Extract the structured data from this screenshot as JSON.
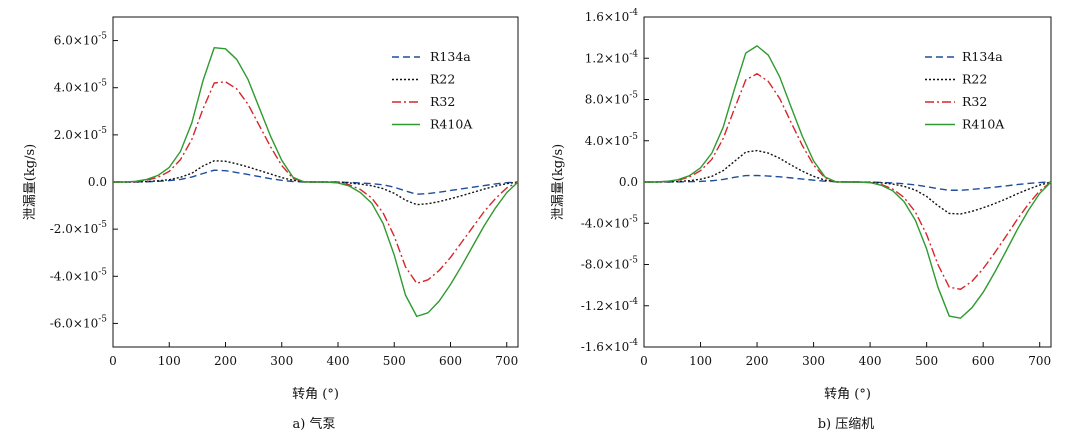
{
  "chart_data": [
    {
      "type": "line",
      "caption": "a) 气泵",
      "xlabel": "转角 (°)",
      "ylabel": "泄漏量(kg/s)",
      "xlim": [
        0,
        720
      ],
      "ylim": [
        -7e-05,
        7e-05
      ],
      "xticks": [
        0,
        100,
        200,
        300,
        400,
        500,
        600,
        700
      ],
      "xtick_labels": [
        "0",
        "100",
        "200",
        "300",
        "400",
        "500",
        "600",
        "700"
      ],
      "yticks": [
        6e-05,
        4e-05,
        2e-05,
        0,
        -2e-05,
        -4e-05,
        -6e-05
      ],
      "ytick_labels": [
        {
          "m": "6.0×10",
          "e": "-5"
        },
        {
          "m": "4.0×10",
          "e": "-5"
        },
        {
          "m": "2.0×10",
          "e": "-5"
        },
        {
          "m": "0.0",
          "e": ""
        },
        {
          "m": "-2.0×10",
          "e": "-5"
        },
        {
          "m": "-4.0×10",
          "e": "-5"
        },
        {
          "m": "-6.0×10",
          "e": "-5"
        }
      ],
      "x": [
        0,
        20,
        40,
        60,
        80,
        100,
        120,
        140,
        160,
        180,
        200,
        220,
        240,
        260,
        280,
        300,
        320,
        340,
        360,
        380,
        400,
        420,
        440,
        460,
        480,
        500,
        520,
        540,
        560,
        580,
        600,
        620,
        640,
        660,
        680,
        700,
        720
      ],
      "series": [
        {
          "name": "R134a",
          "color": "#1f4e9c",
          "dash": "7,4",
          "values": [
            0,
            0,
            0,
            1e-07,
            3e-07,
            6e-07,
            1.1e-06,
            2.1e-06,
            3.6e-06,
            5e-06,
            4.8e-06,
            4e-06,
            3.2e-06,
            2.3e-06,
            1.4e-06,
            7e-07,
            2e-07,
            0,
            0,
            0,
            0,
            -2e-07,
            -4e-07,
            -7e-07,
            -1.2e-06,
            -2.2e-06,
            -3.8e-06,
            -5.2e-06,
            -4.9e-06,
            -4.3e-06,
            -3.6e-06,
            -2.9e-06,
            -2.2e-06,
            -1.5e-06,
            -8e-07,
            -3e-07,
            0
          ]
        },
        {
          "name": "R22",
          "color": "#111111",
          "dash": "2,2",
          "values": [
            0,
            0,
            0,
            2e-07,
            5e-07,
            1e-06,
            2e-06,
            3.7e-06,
            6.8e-06,
            9e-06,
            8.8e-06,
            7.7e-06,
            6.4e-06,
            4.9e-06,
            3.4e-06,
            1.9e-06,
            7e-07,
            1e-07,
            0,
            0,
            -1e-07,
            -4e-07,
            -9e-07,
            -1.6e-06,
            -2.8e-06,
            -4.8e-06,
            -7.7e-06,
            -9.6e-06,
            -9.2e-06,
            -8.3e-06,
            -7.1e-06,
            -5.8e-06,
            -4.4e-06,
            -3e-06,
            -1.7e-06,
            -7e-07,
            0
          ]
        },
        {
          "name": "R32",
          "color": "#d7262b",
          "dash": "9,3,2,3",
          "values": [
            0,
            0,
            2e-07,
            8e-07,
            2e-06,
            4.5e-06,
            9.5e-06,
            1.8e-05,
            3.1e-05,
            4.2e-05,
            4.25e-05,
            3.95e-05,
            3.3e-05,
            2.4e-05,
            1.5e-05,
            7e-06,
            1.5e-06,
            0,
            0,
            0,
            -3e-07,
            -1.2e-06,
            -3.2e-06,
            -6.8e-06,
            -1.3e-05,
            -2.3e-05,
            -3.6e-05,
            -4.3e-05,
            -4.15e-05,
            -3.75e-05,
            -3.2e-05,
            -2.55e-05,
            -1.9e-05,
            -1.25e-05,
            -7e-06,
            -2.5e-06,
            0
          ]
        },
        {
          "name": "R410A",
          "color": "#2f9a2f",
          "dash": "",
          "values": [
            0,
            0,
            3e-07,
            1.1e-06,
            2.8e-06,
            6.2e-06,
            1.3e-05,
            2.5e-05,
            4.3e-05,
            5.7e-05,
            5.65e-05,
            5.2e-05,
            4.35e-05,
            3.15e-05,
            1.95e-05,
            9.2e-06,
            2e-06,
            0,
            0,
            0,
            -4e-07,
            -1.7e-06,
            -4.5e-06,
            -9e-06,
            -1.75e-05,
            -3.1e-05,
            -4.8e-05,
            -5.7e-05,
            -5.55e-05,
            -5.05e-05,
            -4.35e-05,
            -3.55e-05,
            -2.7e-05,
            -1.85e-05,
            -1.1e-05,
            -4.5e-06,
            0
          ]
        }
      ]
    },
    {
      "type": "line",
      "caption": "b) 压缩机",
      "xlabel": "转角 (°)",
      "ylabel": "泄漏量(kg/s)",
      "xlim": [
        0,
        720
      ],
      "ylim": [
        -0.00016,
        0.00016
      ],
      "xticks": [
        0,
        100,
        200,
        300,
        400,
        500,
        600,
        700
      ],
      "xtick_labels": [
        "0",
        "100",
        "200",
        "300",
        "400",
        "500",
        "600",
        "700"
      ],
      "yticks": [
        0.00016,
        0.00012,
        8e-05,
        4e-05,
        0,
        -4e-05,
        -8e-05,
        -0.00012,
        -0.00016
      ],
      "ytick_labels": [
        {
          "m": "1.6×10",
          "e": "-4"
        },
        {
          "m": "1.2×10",
          "e": "-4"
        },
        {
          "m": "8.0×10",
          "e": "-5"
        },
        {
          "m": "4.0×10",
          "e": "-5"
        },
        {
          "m": "0.0",
          "e": ""
        },
        {
          "m": "-4.0×10",
          "e": "-5"
        },
        {
          "m": "-8.0×10",
          "e": "-5"
        },
        {
          "m": "-1.2×10",
          "e": "-4"
        },
        {
          "m": "-1.6×10",
          "e": "-4"
        }
      ],
      "x": [
        0,
        20,
        40,
        60,
        80,
        100,
        120,
        140,
        160,
        180,
        200,
        220,
        240,
        260,
        280,
        300,
        320,
        340,
        360,
        380,
        400,
        420,
        440,
        460,
        480,
        500,
        520,
        540,
        560,
        580,
        600,
        620,
        640,
        660,
        680,
        700,
        720
      ],
      "series": [
        {
          "name": "R134a",
          "color": "#1f4e9c",
          "dash": "7,4",
          "values": [
            0,
            0,
            0,
            1e-07,
            3e-07,
            6e-07,
            1.2e-06,
            2.5e-06,
            4.5e-06,
            6.2e-06,
            6.3e-06,
            5.8e-06,
            5e-06,
            4e-06,
            2.9e-06,
            1.8e-06,
            8e-07,
            2e-07,
            0,
            0,
            -1e-07,
            -4e-07,
            -9e-07,
            -1.7e-06,
            -2.8e-06,
            -4.5e-06,
            -6.5e-06,
            -8e-06,
            -8e-06,
            -7.2e-06,
            -6.2e-06,
            -5e-06,
            -3.8e-06,
            -2.5e-06,
            -1.4e-06,
            -5e-07,
            0
          ]
        },
        {
          "name": "R22",
          "color": "#111111",
          "dash": "2,2",
          "values": [
            0,
            0,
            1e-07,
            5e-07,
            1.2e-06,
            2.7e-06,
            5.5e-06,
            1.1e-05,
            2e-05,
            2.9e-05,
            3.05e-05,
            2.8e-05,
            2.3e-05,
            1.65e-05,
            1.05e-05,
            5.5e-06,
            1.8e-06,
            2e-07,
            0,
            0,
            -2e-07,
            -8e-07,
            -2e-06,
            -4.2e-06,
            -7.8e-06,
            -1.4e-05,
            -2.3e-05,
            -3.05e-05,
            -3.1e-05,
            -2.85e-05,
            -2.5e-05,
            -2.1e-05,
            -1.65e-05,
            -1.15e-05,
            -7e-06,
            -3e-06,
            0
          ]
        },
        {
          "name": "R32",
          "color": "#d7262b",
          "dash": "9,3,2,3",
          "values": [
            0,
            0,
            5e-07,
            1.8e-06,
            4.8e-06,
            1.1e-05,
            2.2e-05,
            4.2e-05,
            7.1e-05,
            9.9e-05,
            0.000105,
            9.75e-05,
            8.1e-05,
            5.8e-05,
            3.55e-05,
            1.65e-05,
            4e-06,
            0,
            0,
            0,
            -5e-07,
            -2.5e-06,
            -6.8e-06,
            -1.5e-05,
            -2.9e-05,
            -5.1e-05,
            -8e-05,
            -0.000102,
            -0.000104,
            -9.65e-05,
            -8.4e-05,
            -6.9e-05,
            -5.3e-05,
            -3.65e-05,
            -2.15e-05,
            -8.5e-06,
            0
          ]
        },
        {
          "name": "R410A",
          "color": "#2f9a2f",
          "dash": "",
          "values": [
            0,
            0,
            6e-07,
            2.3e-06,
            6e-06,
            1.38e-05,
            2.8e-05,
            5.3e-05,
            9e-05,
            0.000125,
            0.000132,
            0.000123,
            0.000102,
            7.3e-05,
            4.45e-05,
            2.05e-05,
            5e-06,
            0,
            0,
            0,
            -6e-07,
            -3.2e-06,
            -8.5e-06,
            -1.9e-05,
            -3.7e-05,
            -6.5e-05,
            -0.000102,
            -0.00013,
            -0.000132,
            -0.000122,
            -0.000107,
            -8.8e-05,
            -6.75e-05,
            -4.65e-05,
            -2.75e-05,
            -1.1e-05,
            0
          ]
        }
      ]
    }
  ]
}
